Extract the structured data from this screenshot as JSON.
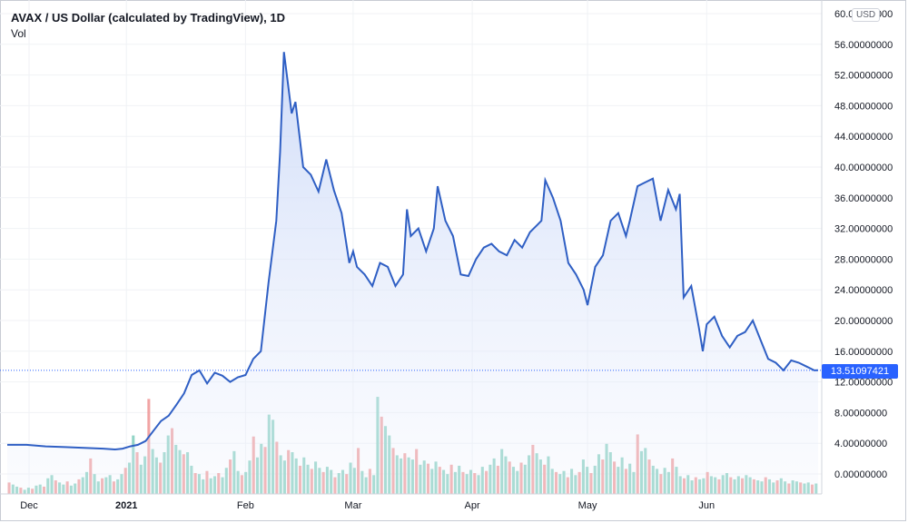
{
  "header": {
    "title": "AVAX / US Dollar (calculated by TradingView), 1D",
    "subtitle": "Vol",
    "currency": "USD"
  },
  "price_tag": "13.51097421",
  "colors": {
    "line": "#2f5fc4",
    "area": "#dfe8fb",
    "vol_up": "#86cfc0",
    "vol_down": "#ef9a9a",
    "price_tag": "#2962ff"
  },
  "chart_data": {
    "type": "area",
    "title": "AVAX / US Dollar (calculated by TradingView), 1D",
    "ylim": [
      0,
      60
    ],
    "yticks": [
      "60.00000000",
      "56.00000000",
      "52.00000000",
      "48.00000000",
      "44.00000000",
      "40.00000000",
      "36.00000000",
      "32.00000000",
      "28.00000000",
      "24.00000000",
      "20.00000000",
      "16.00000000",
      "12.00000000",
      "8.00000000",
      "4.00000000",
      "0.00000000"
    ],
    "xticks": [
      {
        "label": "Dec",
        "day": 0
      },
      {
        "label": "2021",
        "day": 31,
        "bold": true
      },
      {
        "label": "Feb",
        "day": 62
      },
      {
        "label": "Mar",
        "day": 90
      },
      {
        "label": "Apr",
        "day": 121
      },
      {
        "label": "May",
        "day": 151
      },
      {
        "label": "Jun",
        "day": 182
      }
    ],
    "grid": true,
    "last_price": 13.51,
    "series": [
      {
        "type": "line",
        "points": [
          [
            0,
            3.8
          ],
          [
            5,
            3.8
          ],
          [
            10,
            3.6
          ],
          [
            15,
            3.5
          ],
          [
            20,
            3.4
          ],
          [
            25,
            3.3
          ],
          [
            28,
            3.2
          ],
          [
            30,
            3.3
          ],
          [
            32,
            3.6
          ],
          [
            34,
            3.8
          ],
          [
            36,
            4.3
          ],
          [
            38,
            5.6
          ],
          [
            40,
            6.9
          ],
          [
            42,
            7.6
          ],
          [
            44,
            9.0
          ],
          [
            46,
            10.5
          ],
          [
            48,
            12.9
          ],
          [
            50,
            13.5
          ],
          [
            52,
            11.8
          ],
          [
            54,
            13.2
          ],
          [
            56,
            12.8
          ],
          [
            58,
            12.0
          ],
          [
            60,
            12.6
          ],
          [
            62,
            12.9
          ],
          [
            64,
            15.0
          ],
          [
            66,
            16.0
          ],
          [
            68,
            25.0
          ],
          [
            70,
            33.0
          ],
          [
            71,
            42.0
          ],
          [
            72,
            55.0
          ],
          [
            73,
            51.0
          ],
          [
            74,
            47.0
          ],
          [
            75,
            48.5
          ],
          [
            77,
            40.0
          ],
          [
            79,
            39.0
          ],
          [
            81,
            36.8
          ],
          [
            83,
            41.0
          ],
          [
            85,
            37.0
          ],
          [
            87,
            34.0
          ],
          [
            89,
            27.5
          ],
          [
            90,
            29.0
          ],
          [
            91,
            27.0
          ],
          [
            93,
            26.0
          ],
          [
            95,
            24.5
          ],
          [
            97,
            27.5
          ],
          [
            99,
            27.0
          ],
          [
            101,
            24.5
          ],
          [
            103,
            26.0
          ],
          [
            104,
            34.5
          ],
          [
            105,
            31.0
          ],
          [
            107,
            32.0
          ],
          [
            109,
            29.0
          ],
          [
            111,
            32.0
          ],
          [
            112,
            37.5
          ],
          [
            114,
            33.0
          ],
          [
            116,
            31.0
          ],
          [
            118,
            26.0
          ],
          [
            120,
            25.8
          ],
          [
            122,
            28.0
          ],
          [
            124,
            29.5
          ],
          [
            126,
            30.0
          ],
          [
            128,
            29.0
          ],
          [
            130,
            28.5
          ],
          [
            132,
            30.5
          ],
          [
            134,
            29.5
          ],
          [
            136,
            31.5
          ],
          [
            138,
            32.5
          ],
          [
            139,
            33.0
          ],
          [
            140,
            38.3
          ],
          [
            142,
            36.0
          ],
          [
            144,
            33.0
          ],
          [
            146,
            27.5
          ],
          [
            148,
            26.0
          ],
          [
            150,
            24.0
          ],
          [
            151,
            22.0
          ],
          [
            153,
            27.0
          ],
          [
            155,
            28.5
          ],
          [
            157,
            33.0
          ],
          [
            159,
            34.0
          ],
          [
            161,
            31.0
          ],
          [
            162,
            33.0
          ],
          [
            164,
            37.5
          ],
          [
            166,
            38.0
          ],
          [
            168,
            38.5
          ],
          [
            170,
            33.0
          ],
          [
            172,
            37.0
          ],
          [
            174,
            34.5
          ],
          [
            175,
            36.5
          ],
          [
            176,
            23.0
          ],
          [
            178,
            24.5
          ],
          [
            180,
            19.0
          ],
          [
            181,
            16.0
          ],
          [
            182,
            19.5
          ],
          [
            184,
            20.5
          ],
          [
            186,
            18.0
          ],
          [
            188,
            16.5
          ],
          [
            190,
            18.0
          ],
          [
            192,
            18.5
          ],
          [
            194,
            20.0
          ],
          [
            196,
            17.5
          ],
          [
            198,
            15.0
          ],
          [
            200,
            14.5
          ],
          [
            202,
            13.5
          ],
          [
            204,
            14.8
          ],
          [
            206,
            14.5
          ],
          [
            208,
            14.0
          ],
          [
            210,
            13.5
          ],
          [
            211,
            13.51
          ]
        ]
      },
      {
        "type": "volume",
        "values": [
          1.1,
          0.9,
          0.7,
          0.6,
          0.4,
          0.6,
          0.5,
          0.8,
          0.9,
          0.7,
          1.5,
          1.8,
          1.3,
          1.1,
          0.9,
          1.2,
          0.8,
          1.0,
          1.4,
          1.6,
          2.1,
          3.4,
          1.9,
          1.2,
          1.5,
          1.6,
          1.8,
          1.2,
          1.4,
          1.9,
          2.5,
          3.0,
          5.6,
          4.0,
          2.8,
          3.6,
          9.1,
          4.3,
          3.5,
          3.0,
          4.0,
          5.6,
          6.3,
          4.7,
          4.2,
          3.8,
          4.0,
          2.7,
          2.0,
          1.9,
          1.4,
          2.2,
          1.5,
          1.7,
          2.0,
          1.6,
          2.5,
          3.3,
          4.1,
          2.2,
          1.8,
          2.1,
          3.2,
          5.5,
          3.5,
          4.8,
          4.5,
          7.6,
          7.1,
          5.0,
          3.7,
          3.2,
          4.2,
          4.0,
          3.4,
          2.7,
          3.5,
          2.8,
          2.4,
          3.1,
          2.5,
          2.1,
          2.6,
          2.3,
          1.6,
          2.0,
          2.3,
          1.9,
          3.0,
          2.5,
          4.4,
          2.2,
          1.6,
          2.4,
          1.8,
          9.3,
          7.4,
          6.5,
          5.6,
          4.4,
          3.7,
          3.4,
          3.9,
          3.5,
          3.3,
          4.3,
          2.8,
          3.2,
          2.9,
          2.4,
          3.1,
          2.6,
          2.3,
          1.9,
          2.8,
          2.1,
          2.7,
          2.1,
          1.9,
          2.3,
          2.0,
          1.8,
          2.6,
          2.2,
          2.8,
          3.4,
          2.7,
          4.3,
          3.6,
          3.1,
          2.6,
          2.2,
          3.0,
          2.8,
          3.7,
          4.7,
          3.9,
          3.3,
          2.8,
          3.6,
          2.4,
          2.1,
          1.9,
          2.2,
          1.6,
          2.4,
          1.8,
          2.1,
          3.3,
          2.6,
          2.0,
          2.7,
          3.8,
          3.3,
          4.8,
          4.0,
          3.1,
          2.6,
          3.5,
          2.4,
          2.9,
          2.1,
          5.7,
          4.1,
          4.4,
          3.3,
          2.7,
          2.4,
          1.9,
          2.5,
          2.1,
          3.4,
          2.6,
          1.7,
          1.5,
          1.8,
          1.3,
          1.6,
          1.4,
          1.5,
          2.1,
          1.7,
          1.6,
          1.4,
          1.8,
          2.0,
          1.6,
          1.4,
          1.7,
          1.5,
          1.8,
          1.6,
          1.4,
          1.3,
          1.2,
          1.6,
          1.4,
          1.1,
          1.3,
          1.5,
          1.2,
          1.0,
          1.3,
          1.2,
          1.1,
          1.0,
          1.1,
          0.9,
          1.0
        ],
        "max": 10
      }
    ]
  }
}
